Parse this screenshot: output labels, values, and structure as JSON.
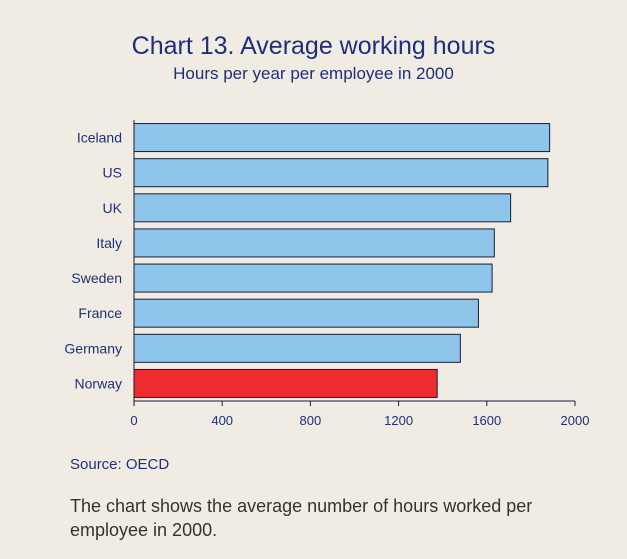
{
  "chart_data": {
    "type": "bar",
    "orientation": "horizontal",
    "title": "Chart 13. Average working hours",
    "subtitle": "Hours per year per employee in 2000",
    "categories": [
      "Iceland",
      "US",
      "UK",
      "Italy",
      "Sweden",
      "France",
      "Germany",
      "Norway"
    ],
    "values": [
      1885,
      1877,
      1708,
      1634,
      1624,
      1562,
      1480,
      1375
    ],
    "bar_colors": [
      "#8ec5ea",
      "#8ec5ea",
      "#8ec5ea",
      "#8ec5ea",
      "#8ec5ea",
      "#8ec5ea",
      "#8ec5ea",
      "#ee2b2f"
    ],
    "xlim": [
      0,
      2000
    ],
    "xticks": [
      "0",
      "400",
      "800",
      "1200",
      "1600",
      "2000"
    ],
    "xlabel": "",
    "ylabel": "",
    "grid": false,
    "legend": "none"
  },
  "source": "Source: OECD",
  "caption": "The chart shows the average number of hours worked per employee in 2000."
}
